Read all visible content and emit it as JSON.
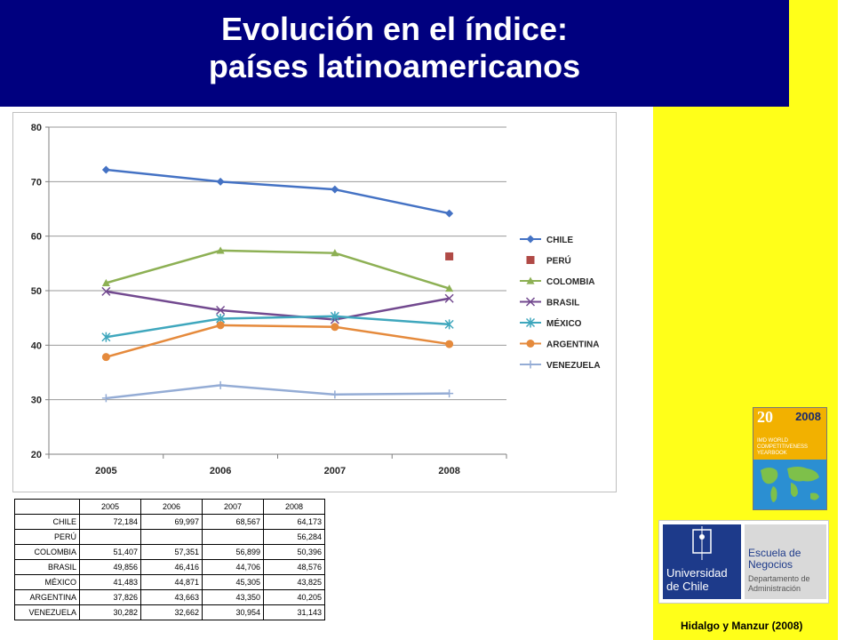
{
  "title": {
    "line1": "Evolución en el índice:",
    "line2": "países latinoamericanos"
  },
  "chart_data": {
    "type": "line",
    "categories": [
      "2005",
      "2006",
      "2007",
      "2008"
    ],
    "ylim": [
      20,
      80
    ],
    "yticks": [
      20,
      30,
      40,
      50,
      60,
      70,
      80
    ],
    "grid": true,
    "legend": "right",
    "series": [
      {
        "name": "CHILE",
        "color": "#4472c4",
        "marker": "diamond",
        "values": [
          72.184,
          69.997,
          68.567,
          64.173
        ]
      },
      {
        "name": "PERÚ",
        "color": "#b04a46",
        "marker": "square",
        "values": [
          null,
          null,
          null,
          56.284
        ]
      },
      {
        "name": "COLOMBIA",
        "color": "#8db054",
        "marker": "triangle",
        "values": [
          51.407,
          57.351,
          56.899,
          50.396
        ]
      },
      {
        "name": "BRASIL",
        "color": "#72498f",
        "marker": "x",
        "values": [
          49.856,
          46.416,
          44.706,
          48.576
        ]
      },
      {
        "name": "MÉXICO",
        "color": "#3fa7bd",
        "marker": "star",
        "values": [
          41.483,
          44.871,
          45.305,
          43.825
        ]
      },
      {
        "name": "ARGENTINA",
        "color": "#e58a3c",
        "marker": "circle",
        "values": [
          37.826,
          43.663,
          43.35,
          40.205
        ]
      },
      {
        "name": "VENEZUELA",
        "color": "#94acd5",
        "marker": "plus",
        "values": [
          30.282,
          32.662,
          30.954,
          31.143
        ]
      }
    ]
  },
  "table": {
    "years": [
      "2005",
      "2006",
      "2007",
      "2008"
    ],
    "rows": [
      {
        "name": "CHILE",
        "values": [
          "72,184",
          "69,997",
          "68,567",
          "64,173"
        ]
      },
      {
        "name": "PERÚ",
        "values": [
          "",
          "",
          "",
          "56,284"
        ]
      },
      {
        "name": "COLOMBIA",
        "values": [
          "51,407",
          "57,351",
          "56,899",
          "50,396"
        ]
      },
      {
        "name": "BRASIL",
        "values": [
          "49,856",
          "46,416",
          "44,706",
          "48,576"
        ]
      },
      {
        "name": "MÉXICO",
        "values": [
          "41,483",
          "44,871",
          "45,305",
          "43,825"
        ]
      },
      {
        "name": "ARGENTINA",
        "values": [
          "37,826",
          "43,663",
          "43,350",
          "40,205"
        ]
      },
      {
        "name": "VENEZUELA",
        "values": [
          "30,282",
          "32,662",
          "30,954",
          "31,143"
        ]
      }
    ]
  },
  "yearbook": {
    "year": "2008",
    "edition": "20",
    "subtitle": "IMD WORLD COMPETITIVENESS YEARBOOK"
  },
  "logo": {
    "university_line1": "Universidad",
    "university_line2": "de Chile",
    "school": "Escuela de Negocios",
    "department": "Departamento de Administración"
  },
  "credit": "Hidalgo y Manzur (2008)"
}
